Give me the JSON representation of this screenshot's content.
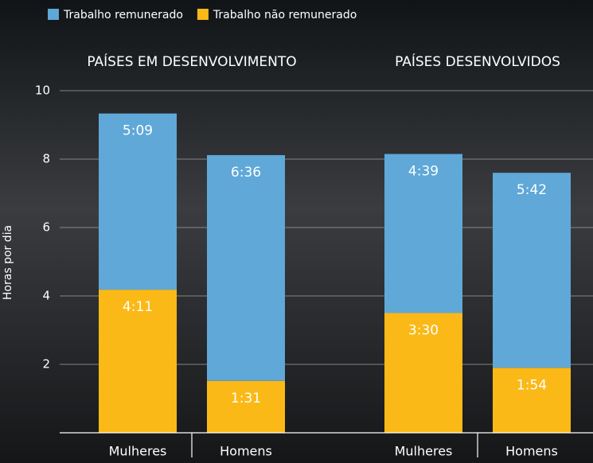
{
  "chart_data": {
    "type": "stacked_bar",
    "groups": [
      "PAÍSES EM DESENVOLVIMENTO",
      "PAÍSES DESENVOLVIDOS"
    ],
    "categories": [
      "Mulheres",
      "Homens",
      "Mulheres",
      "Homens"
    ],
    "y_label": "Horas por dia",
    "series": [
      {
        "name": "Trabalho remunerado",
        "color": "#5fa8d8",
        "values": [
          5.15,
          6.6,
          4.65,
          5.7
        ],
        "value_labels": [
          "5:09",
          "6:36",
          "4:39",
          "5:42"
        ]
      },
      {
        "name": "Trabalho não remunerado",
        "color": "#fbb917",
        "values": [
          4.1833,
          1.5167,
          3.5,
          1.9
        ],
        "value_labels": [
          "4:11",
          "1:31",
          "3:30",
          "1:54"
        ]
      }
    ],
    "ylim": [
      0,
      10
    ],
    "yticks": [
      2,
      4,
      6,
      8,
      10
    ],
    "grid": true,
    "legend": "top-left"
  }
}
